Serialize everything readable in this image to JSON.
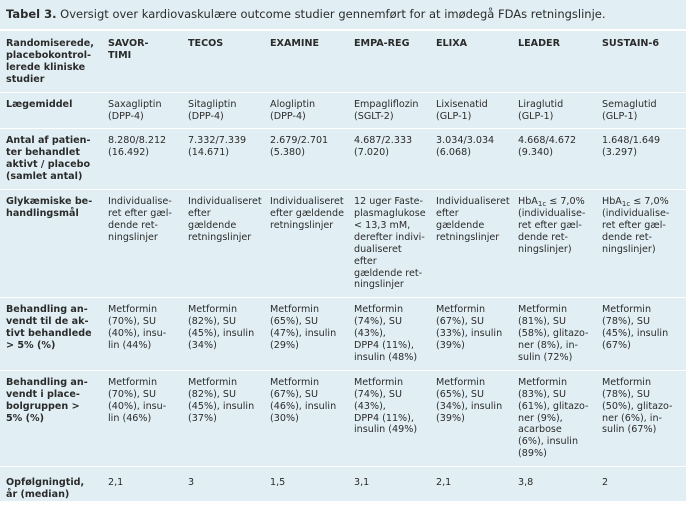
{
  "caption": {
    "label": "Tabel 3.",
    "text": " Oversigt over kardiovaskulære outcome studier gennemført for at imødegå FDAs retningslinje."
  },
  "table": {
    "header": {
      "label": "Randomiserede,\nplacebokontrol-\nlerede kliniske\nstudier",
      "studies": [
        "SAVOR-\nTIMI",
        "TECOS",
        "EXAMINE",
        "EMPA-REG",
        "ELIXA",
        "LEADER",
        "SUSTAIN-6"
      ]
    },
    "rows": {
      "drug": {
        "label": "Lægemiddel",
        "cells": [
          "Saxagliptin\n(DPP-4)",
          "Sitagliptin\n(DPP-4)",
          "Alogliptin\n(DPP-4)",
          "Empagliflozin\n(SGLT-2)",
          "Lixisenatid\n(GLP-1)",
          "Liraglutid\n(GLP-1)",
          "Semaglutid\n(GLP-1)"
        ]
      },
      "patients": {
        "label": "Antal af patien-\nter behandlet\naktivt / placebo\n(samlet antal)",
        "cells": [
          "8.280/8.212\n(16.492)",
          "7.332/7.339\n(14.671)",
          "2.679/2.701\n(5.380)",
          "4.687/2.333\n(7.020)",
          "3.034/3.034\n(6.068)",
          "4.668/4.672\n(9.340)",
          "1.648/1.649\n(3.297)"
        ]
      },
      "glycemic": {
        "label": "Glykæmiske be-\nhandlingsmål",
        "cells": [
          "Individualise-\nret efter gæl-\ndende ret-\nningslinjer",
          "Individualiseret\nefter gældende\nretningslinjer",
          "Individualiseret\nefter gældende\nretningslinjer",
          "12 uger Faste-\nplasmaglukose\n< 13,3 mM,\nderefter indivi-\ndualiseret efter\ngældende ret-\nningslinjer",
          "Individualiseret\nefter gældende\nretningslinjer",
          "(individualise-\nret efter gæl-\ndende ret-\nningslinjer)",
          "(individualise-\nret efter gæl-\ndende ret-\nningslinjer)"
        ],
        "hba1c_prefix": "HbA",
        "hba1c_sub": "1c",
        "hba1c_suffix": " ≤ 7,0%"
      },
      "active": {
        "label": "Behandling an-\nvendt til de ak-\ntivt behandlede\n> 5% (%)",
        "cells": [
          "Metformin\n(70%), SU\n(40%), insu-\nlin (44%)",
          "Metformin\n(82%), SU\n(45%), insulin\n(34%)",
          "Metformin\n(65%), SU\n(47%), insulin\n(29%)",
          "Metformin\n(74%), SU\n(43%),\nDPP4 (11%),\ninsulin (48%)",
          "Metformin\n(67%), SU\n(33%), insulin\n(39%)",
          "Metformin\n(81%), SU\n(58%), glitazo-\nner (8%), in-\nsulin (72%)",
          "Metformin\n(78%), SU\n(45%), insulin\n(67%)"
        ]
      },
      "placebo": {
        "label": "Behandling an-\nvendt i place-\nbolgruppen >\n5% (%)",
        "cells": [
          "Metformin\n(70%), SU\n(40%), insu-\nlin (46%)",
          "Metformin\n(82%), SU\n(45%), insulin\n(37%)",
          "Metformin\n(67%), SU\n(46%), insulin\n(30%)",
          "Metformin\n(74%), SU\n(43%),\nDPP4 (11%),\ninsulin (49%)",
          "Metformin\n(65%), SU\n(34%), insulin\n(39%)",
          "Metformin\n(83%), SU\n(61%), glitazo-\nner (9%),\nacarbose\n(6%), insulin\n(89%)",
          "Metformin\n(78%), SU\n(50%), glitazo-\nner (6%), in-\nsulin (67%)"
        ]
      },
      "followup": {
        "label": "Opfølgningtid,\når (median)",
        "cells": [
          "2,1",
          "3",
          "1,5",
          "3,1",
          "2,1",
          "3,8",
          "2"
        ]
      }
    }
  }
}
